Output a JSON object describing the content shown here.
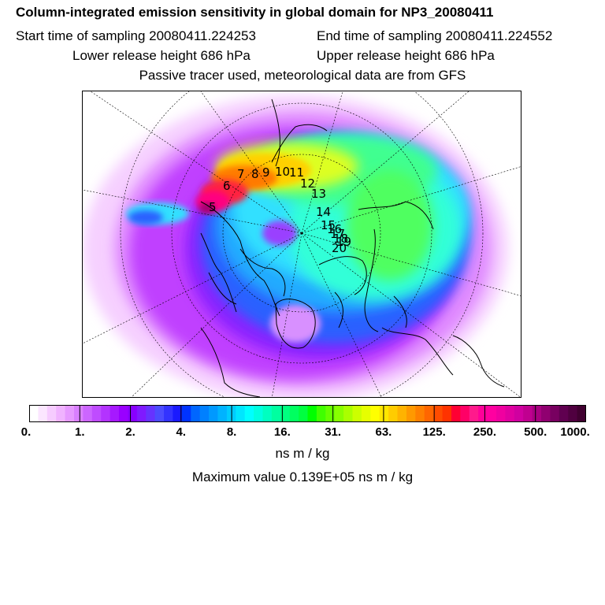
{
  "title": "Column-integrated emission sensitivity in global domain for NP3_20080411",
  "sampling": {
    "start": "Start time of sampling 20080411.224253",
    "end": "End time of sampling 20080411.224552"
  },
  "release": {
    "lower": "Lower release height  686 hPa",
    "upper": "Upper release height  686 hPa"
  },
  "tracer_note": "Passive tracer used, meteorological data are from GFS",
  "colorbar": {
    "tick_labels": [
      "0.",
      "1.",
      "2.",
      "4.",
      "8.",
      "16.",
      "31.",
      "63.",
      "125.",
      "250.",
      "500.",
      "1000."
    ],
    "colors": [
      "#ffffff",
      "#fbe6ff",
      "#f6ccff",
      "#f0b3ff",
      "#e699ff",
      "#d97fff",
      "#cc66ff",
      "#bf4cff",
      "#b333ff",
      "#a619ff",
      "#9900ff",
      "#8800ff",
      "#7f1aff",
      "#6633ff",
      "#4c4cff",
      "#3333ff",
      "#1a1aff",
      "#0033ff",
      "#0066ff",
      "#0080ff",
      "#0099ff",
      "#00b3ff",
      "#00ccff",
      "#00e6ff",
      "#00ffff",
      "#00ffe0",
      "#00ffc0",
      "#00ffa0",
      "#00ff80",
      "#00ff60",
      "#00ff40",
      "#00ff00",
      "#40ff00",
      "#66ff00",
      "#88ff00",
      "#aaff00",
      "#ccff00",
      "#e6ff00",
      "#ffff00",
      "#ffe600",
      "#ffcc00",
      "#ffb300",
      "#ff9900",
      "#ff8000",
      "#ff6600",
      "#ff4c00",
      "#ff3300",
      "#ff0033",
      "#ff0066",
      "#ff1a8c",
      "#ff0099",
      "#ff00a0",
      "#f000a0",
      "#e000a0",
      "#d000a0",
      "#c00090",
      "#a80080",
      "#900070",
      "#780060",
      "#600050",
      "#500040",
      "#400030"
    ],
    "unit": "ns m / kg"
  },
  "maximum": "Maximum value  0.139E+05 ns m / kg",
  "track_labels": [
    "5",
    "6",
    "7",
    "8",
    "9",
    "10",
    "11",
    "12",
    "13",
    "14",
    "15",
    "16",
    "17",
    "18",
    "19",
    "20"
  ]
}
